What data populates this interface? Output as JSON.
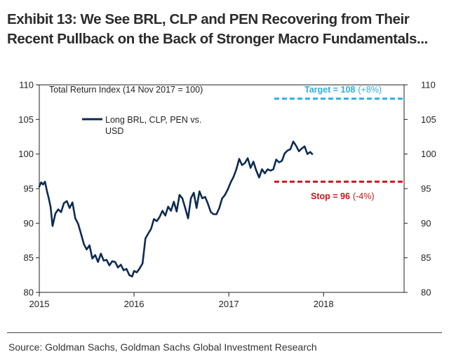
{
  "title_line1": "Exhibit 13: We See BRL, CLP and PEN Recovering from Their",
  "title_line2": "Recent Pullback on the Back of Stronger Macro Fundamentals...",
  "source": "Source: Goldman Sachs, Goldman Sachs Global Investment Research",
  "colors": {
    "series": "#0d2b52",
    "target": "#29aee3",
    "stop": "#cc1417",
    "axis": "#231f20"
  },
  "chart_data": {
    "type": "line",
    "subtitle": "Total Return Index (14 Nov 2017 = 100)",
    "xlabel": "",
    "ylabel": "",
    "ylim": [
      80,
      110
    ],
    "xlim": [
      2015,
      2018.85
    ],
    "y_ticks": [
      80,
      85,
      90,
      95,
      100,
      105,
      110
    ],
    "x_ticks": [
      2015,
      2016,
      2017,
      2018
    ],
    "x_tick_labels": [
      "2015",
      "2016",
      "2017",
      "2018"
    ],
    "y_ticks_left": [
      "80",
      "85",
      "90",
      "95",
      "100",
      "105",
      "110"
    ],
    "y_ticks_right": [
      "80",
      "85",
      "90",
      "95",
      "100",
      "105",
      "110"
    ],
    "legend": {
      "position": "top-left",
      "line1": "Long BRL, CLP, PEN vs.",
      "line2": "USD"
    },
    "series": [
      {
        "name": "Long BRL, CLP, PEN vs. USD",
        "x": [
          2015.0,
          2015.02,
          2015.04,
          2015.06,
          2015.08,
          2015.1,
          2015.12,
          2015.14,
          2015.17,
          2015.2,
          2015.23,
          2015.26,
          2015.29,
          2015.32,
          2015.35,
          2015.38,
          2015.41,
          2015.44,
          2015.47,
          2015.5,
          2015.53,
          2015.56,
          2015.59,
          2015.62,
          2015.65,
          2015.68,
          2015.71,
          2015.74,
          2015.77,
          2015.8,
          2015.83,
          2015.86,
          2015.89,
          2015.92,
          2015.95,
          2015.98,
          2016.0,
          2016.03,
          2016.06,
          2016.09,
          2016.12,
          2016.15,
          2016.18,
          2016.21,
          2016.24,
          2016.27,
          2016.3,
          2016.33,
          2016.36,
          2016.39,
          2016.42,
          2016.45,
          2016.48,
          2016.51,
          2016.54,
          2016.57,
          2016.6,
          2016.63,
          2016.66,
          2016.69,
          2016.72,
          2016.75,
          2016.78,
          2016.81,
          2016.84,
          2016.87,
          2016.9,
          2016.93,
          2016.96,
          2016.99,
          2017.02,
          2017.05,
          2017.08,
          2017.11,
          2017.14,
          2017.17,
          2017.2,
          2017.23,
          2017.26,
          2017.29,
          2017.32,
          2017.35,
          2017.38,
          2017.41,
          2017.44,
          2017.47,
          2017.5,
          2017.53,
          2017.56,
          2017.59,
          2017.62,
          2017.65,
          2017.68,
          2017.71,
          2017.74,
          2017.77,
          2017.8,
          2017.83,
          2017.86,
          2017.88
        ],
        "values": [
          95.3,
          95.9,
          95.6,
          96.0,
          94.7,
          93.6,
          92.3,
          89.6,
          91.4,
          92.0,
          91.6,
          92.9,
          93.2,
          92.2,
          93.0,
          90.7,
          89.9,
          88.5,
          87.0,
          86.2,
          86.8,
          84.9,
          85.4,
          84.4,
          85.6,
          84.6,
          84.7,
          83.9,
          84.5,
          84.4,
          83.6,
          84.0,
          83.2,
          83.4,
          82.5,
          82.3,
          83.1,
          82.9,
          83.5,
          84.2,
          87.8,
          88.5,
          89.2,
          90.6,
          90.3,
          90.9,
          91.8,
          91.1,
          92.4,
          91.8,
          93.1,
          91.7,
          94.1,
          93.6,
          92.2,
          90.7,
          93.6,
          94.4,
          92.2,
          94.6,
          93.6,
          93.8,
          92.8,
          91.6,
          91.3,
          91.3,
          92.2,
          93.6,
          94.1,
          94.9,
          95.9,
          96.7,
          97.8,
          99.3,
          98.4,
          98.7,
          99.4,
          98.0,
          98.9,
          97.6,
          96.6,
          97.8,
          97.2,
          97.8,
          97.6,
          97.8,
          99.2,
          98.8,
          99.0,
          100.1,
          100.5,
          100.7,
          101.8,
          101.2,
          100.4,
          100.8,
          101.1,
          100.0,
          100.3,
          100.0
        ]
      }
    ],
    "annotations": {
      "target": {
        "value": 108,
        "x_start": 2017.48,
        "x_end": 2018.85,
        "label": "Target = 108",
        "pct": "(+8%)"
      },
      "stop": {
        "value": 96,
        "x_start": 2017.48,
        "x_end": 2018.85,
        "label": "Stop = 96",
        "pct": "(-4%)"
      }
    }
  }
}
